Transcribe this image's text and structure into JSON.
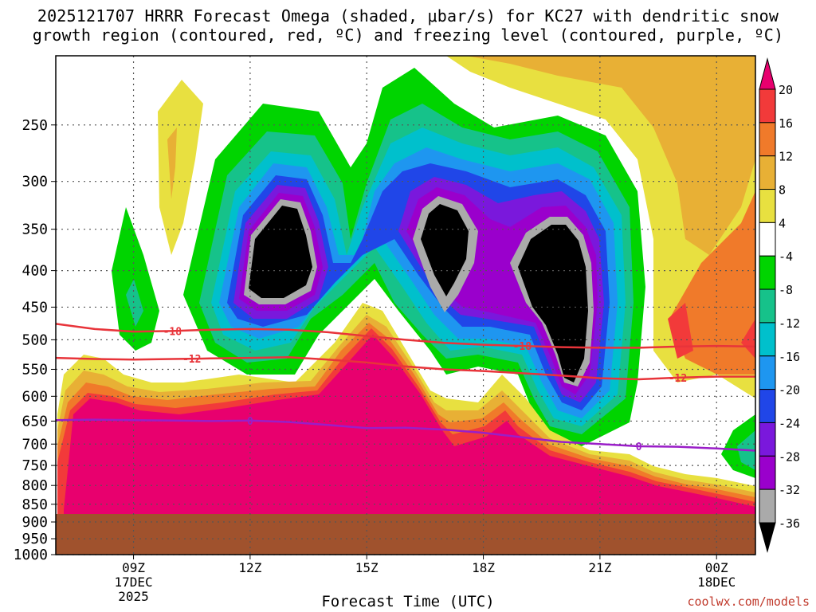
{
  "title": {
    "line1": "2025121707 HRRR Forecast Omega (shaded, μbar/s) for KC27 with dendritic snow",
    "line2": "growth region (contoured, red, ºC) and freezing level (contoured, purple, ºC)"
  },
  "xlabel": "Forecast Time (UTC)",
  "credit": "coolwx.com/models",
  "chart_data": {
    "type": "heatmap",
    "y_axis": {
      "ticks": [
        250,
        300,
        350,
        400,
        450,
        500,
        550,
        600,
        650,
        700,
        750,
        800,
        850,
        900,
        950,
        1000
      ],
      "range": [
        1000,
        200
      ],
      "scale": "log-pressure",
      "units": "hPa",
      "grid": true
    },
    "x_axis": {
      "ticks": [
        {
          "hour": 9,
          "label": "09Z",
          "sub1": "17DEC",
          "sub2": "2025"
        },
        {
          "hour": 12,
          "label": "12Z",
          "sub1": "",
          "sub2": ""
        },
        {
          "hour": 15,
          "label": "15Z",
          "sub1": "",
          "sub2": ""
        },
        {
          "hour": 18,
          "label": "18Z",
          "sub1": "",
          "sub2": ""
        },
        {
          "hour": 21,
          "label": "21Z",
          "sub1": "",
          "sub2": ""
        },
        {
          "hour": 24,
          "label": "00Z",
          "sub1": "18DEC",
          "sub2": ""
        }
      ],
      "range_hours": [
        7,
        25
      ],
      "grid": true
    },
    "colorbar": {
      "labels": [
        "20",
        "16",
        "12",
        "8",
        "4",
        "-4",
        "-8",
        "-12",
        "-16",
        "-20",
        "-24",
        "-28",
        "-32",
        "-36"
      ],
      "colors": [
        "#e8006e",
        "#f23a3a",
        "#f07a2a",
        "#e8b035",
        "#e8e040",
        "#ffffff",
        "#00d400",
        "#16c28a",
        "#00c0cc",
        "#1e96f0",
        "#2046e8",
        "#7a18dc",
        "#9a00cc",
        "#aaaaaa",
        "#000000"
      ],
      "placement": "right"
    },
    "omega_regions": [
      {
        "name": "ground",
        "color": "#a0522d"
      },
      {
        "name": "strong-downward-motion",
        "color": "#e8006e"
      },
      {
        "name": "strong-upward-core-1",
        "color": "#000000"
      },
      {
        "name": "strong-upward-core-2",
        "color": "#000000"
      },
      {
        "name": "strong-upward-core-3",
        "color": "#000000"
      }
    ],
    "contours": [
      {
        "label": "-18",
        "color": "#e8343a",
        "kind": "dendritic",
        "points": [
          [
            7,
            475
          ],
          [
            8,
            483
          ],
          [
            9,
            487
          ],
          [
            10,
            486
          ],
          [
            11,
            484
          ],
          [
            12,
            483
          ],
          [
            13,
            484
          ],
          [
            14,
            488
          ],
          [
            15,
            494
          ],
          [
            16,
            500
          ],
          [
            17,
            505
          ],
          [
            18,
            508
          ],
          [
            19,
            510
          ],
          [
            20,
            512
          ],
          [
            21,
            513
          ],
          [
            22,
            513
          ],
          [
            23,
            511
          ],
          [
            24,
            510
          ],
          [
            25,
            511
          ]
        ]
      },
      {
        "label": "-12",
        "color": "#e8343a",
        "kind": "dendritic",
        "points": [
          [
            7,
            530
          ],
          [
            8,
            532
          ],
          [
            9,
            533
          ],
          [
            10,
            532
          ],
          [
            11,
            531
          ],
          [
            12,
            530
          ],
          [
            13,
            529
          ],
          [
            14,
            533
          ],
          [
            15,
            538
          ],
          [
            16,
            545
          ],
          [
            17,
            550
          ],
          [
            18,
            553
          ],
          [
            19,
            557
          ],
          [
            20,
            561
          ],
          [
            21,
            566
          ],
          [
            22,
            568
          ],
          [
            23,
            565
          ],
          [
            24,
            563
          ],
          [
            25,
            563
          ]
        ]
      },
      {
        "label": "0",
        "color": "#9a1ec8",
        "kind": "freezing-level",
        "points": [
          [
            7,
            648
          ],
          [
            8,
            647
          ],
          [
            9,
            648
          ],
          [
            10,
            649
          ],
          [
            11,
            650
          ],
          [
            12,
            649
          ],
          [
            13,
            652
          ],
          [
            14,
            658
          ],
          [
            15,
            665
          ],
          [
            16,
            664
          ],
          [
            17,
            668
          ],
          [
            18,
            675
          ],
          [
            19,
            685
          ],
          [
            20,
            695
          ],
          [
            21,
            700
          ],
          [
            22,
            705
          ],
          [
            23,
            706
          ],
          [
            24,
            710
          ],
          [
            25,
            715
          ]
        ]
      }
    ]
  }
}
